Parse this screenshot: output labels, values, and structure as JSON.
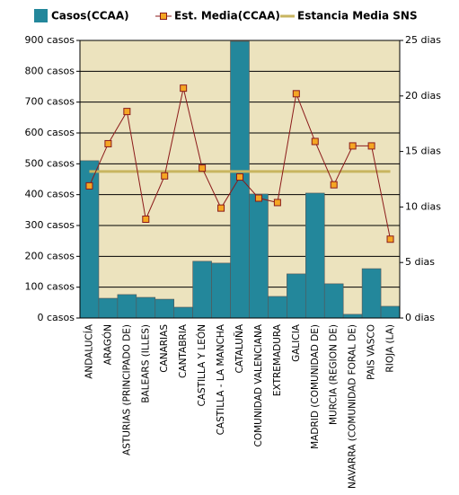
{
  "chart_data": {
    "type": "bar",
    "categories": [
      "ANDALUCÍA",
      "ARAGÓN",
      "ASTURIAS (PRINCIPADO DE)",
      "BALEARS (ILLES)",
      "CANARIAS",
      "CANTABRIA",
      "CASTILLA Y LEÓN",
      "CASTILLA - LA MANCHA",
      "CATALUÑA",
      "COMUNIDAD VALENCIANA",
      "EXTREMADURA",
      "GALICIA",
      "MADRID (COMUNIDAD DE)",
      "MURCIA (REGION DE)",
      "NAVARRA (COMUNIDAD FORAL DE)",
      "PAIS VASCO",
      "RIOJA (LA)"
    ],
    "series": [
      {
        "name": "Casos(CCAA)",
        "type": "bar",
        "color": "#23879b",
        "values": [
          510,
          64,
          76,
          67,
          61,
          35,
          184,
          178,
          897,
          402,
          70,
          143,
          405,
          111,
          12,
          160,
          38
        ]
      },
      {
        "name": "Est. Media(CCAA)",
        "type": "line",
        "axis": "y2",
        "color": "#8b1a1a",
        "marker_color": "#f5a623",
        "values": [
          11.9,
          15.7,
          18.6,
          8.9,
          12.8,
          20.7,
          13.5,
          9.9,
          12.7,
          10.8,
          10.4,
          20.2,
          15.9,
          12.0,
          15.5,
          15.5,
          7.1
        ]
      }
    ],
    "reference_lines": [
      {
        "name": "Estancia Media SNS",
        "value": 13.2,
        "axis": "y2",
        "color": "#c8b560"
      }
    ],
    "ylim": [
      0,
      900
    ],
    "yticks": [
      {
        "value": 0,
        "label": "0 casos"
      },
      {
        "value": 100,
        "label": "100 casos"
      },
      {
        "value": 200,
        "label": "200 casos"
      },
      {
        "value": 300,
        "label": "300 casos"
      },
      {
        "value": 400,
        "label": "400 casos"
      },
      {
        "value": 500,
        "label": "500 casos"
      },
      {
        "value": 600,
        "label": "600 casos"
      },
      {
        "value": 700,
        "label": "700 casos"
      },
      {
        "value": 800,
        "label": "800 casos"
      },
      {
        "value": 900,
        "label": "900 casos"
      }
    ],
    "y2lim": [
      0,
      25
    ],
    "y2ticks": [
      {
        "value": 0,
        "label": "0 dias"
      },
      {
        "value": 5,
        "label": "5 dias"
      },
      {
        "value": 10,
        "label": "10 dias"
      },
      {
        "value": 15,
        "label": "15 dias"
      },
      {
        "value": 20,
        "label": "20 dias"
      },
      {
        "value": 25,
        "label": "25 dias"
      }
    ],
    "grid": true,
    "legend": "top",
    "background": "#ece3be"
  }
}
